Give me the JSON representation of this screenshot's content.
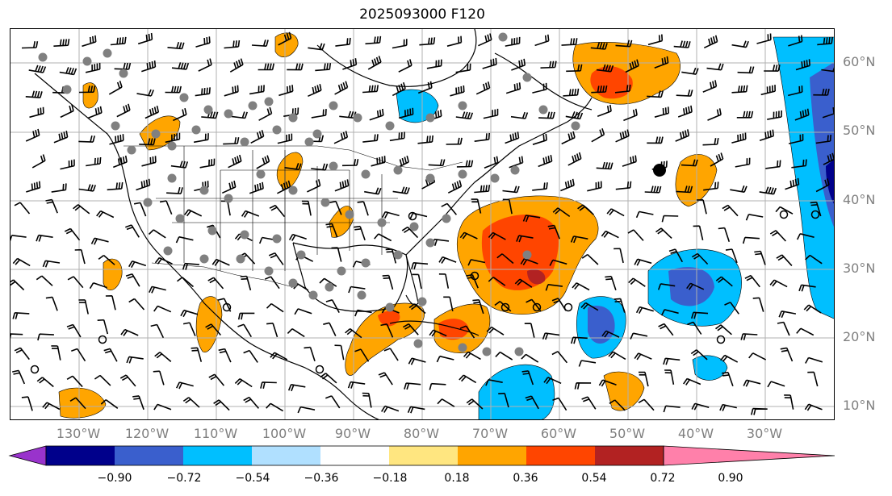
{
  "title": "2025093000 F120",
  "lat_labels": [
    "60°N",
    "50°N",
    "40°N",
    "30°N",
    "20°N",
    "10°N"
  ],
  "lon_labels": [
    "130°W",
    "120°W",
    "110°W",
    "100°W",
    "90°W",
    "80°W",
    "70°W",
    "60°W",
    "50°W",
    "40°W",
    "30°W"
  ],
  "colorbar": {
    "ticks": [
      "−0.90",
      "−0.72",
      "−0.54",
      "−0.36",
      "−0.18",
      "0.18",
      "0.36",
      "0.54",
      "0.72",
      "0.90"
    ],
    "colors": [
      "#9933cc",
      "#00008b",
      "#3a5fcd",
      "#00bfff",
      "#b0e0ff",
      "#ffffff",
      "#ffe680",
      "#ffa500",
      "#ff4500",
      "#b22222",
      "#ff80aa"
    ]
  },
  "fill_colors": {
    "orange": "#ffa500",
    "red_orange": "#ff4500",
    "dark_red": "#b22222",
    "light_blue": "#00bfff",
    "blue": "#3a5fcd",
    "navy": "#00008b"
  }
}
